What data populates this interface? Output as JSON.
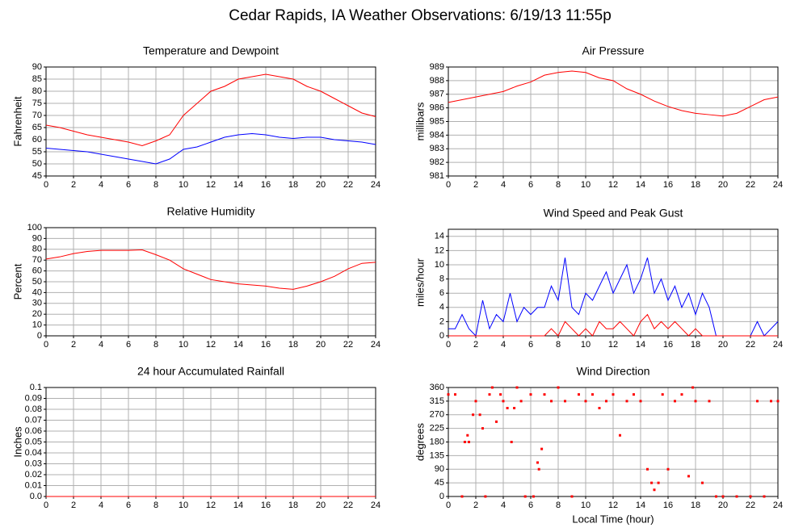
{
  "title": "Cedar Rapids, IA Weather Observations: 6/19/13 11:55p",
  "chart_data": [
    {
      "type": "line",
      "title": "Temperature and Dewpoint",
      "ylabel": "Fahrenheit",
      "x": [
        0,
        1,
        2,
        3,
        4,
        5,
        6,
        7,
        8,
        9,
        10,
        11,
        12,
        13,
        14,
        15,
        16,
        17,
        18,
        19,
        20,
        21,
        22,
        23,
        24
      ],
      "series": [
        {
          "color": "#ff0000",
          "values": [
            66,
            65,
            63.5,
            62,
            61,
            60,
            59,
            57.5,
            59.5,
            62,
            70,
            75,
            80,
            82,
            85,
            86,
            87,
            86,
            85,
            82,
            80,
            77,
            74,
            71,
            69.5
          ]
        },
        {
          "color": "#0000ff",
          "values": [
            56.5,
            56,
            55.5,
            55,
            54,
            53,
            52,
            51,
            50,
            52,
            56,
            57,
            59,
            61,
            62,
            62.5,
            62,
            61,
            60.5,
            61,
            61,
            60,
            59.5,
            59,
            58
          ]
        }
      ],
      "xlim": [
        0,
        24
      ],
      "xticks": [
        0,
        2,
        4,
        6,
        8,
        10,
        12,
        14,
        16,
        18,
        20,
        22,
        24
      ],
      "ylim": [
        45,
        90
      ],
      "yticks": [
        45,
        50,
        55,
        60,
        65,
        70,
        75,
        80,
        85,
        90
      ],
      "grid": true
    },
    {
      "type": "line",
      "title": "Air Pressure",
      "ylabel": "millibars",
      "x": [
        0,
        1,
        2,
        3,
        4,
        5,
        6,
        7,
        8,
        9,
        10,
        11,
        12,
        13,
        14,
        15,
        16,
        17,
        18,
        19,
        20,
        21,
        22,
        23,
        24
      ],
      "series": [
        {
          "color": "#ff0000",
          "values": [
            986.4,
            986.6,
            986.8,
            987,
            987.2,
            987.6,
            987.9,
            988.4,
            988.6,
            988.7,
            988.6,
            988.2,
            988.0,
            987.4,
            987.0,
            986.5,
            986.1,
            985.8,
            985.6,
            985.5,
            985.4,
            985.6,
            986.1,
            986.6,
            986.8
          ]
        }
      ],
      "xlim": [
        0,
        24
      ],
      "xticks": [
        0,
        2,
        4,
        6,
        8,
        10,
        12,
        14,
        16,
        18,
        20,
        22,
        24
      ],
      "ylim": [
        981,
        989
      ],
      "yticks": [
        981,
        982,
        983,
        984,
        985,
        986,
        987,
        988,
        989
      ],
      "grid": true
    },
    {
      "type": "line",
      "title": "Relative Humidity",
      "ylabel": "Percent",
      "x": [
        0,
        1,
        2,
        3,
        4,
        5,
        6,
        7,
        8,
        9,
        10,
        11,
        12,
        13,
        14,
        15,
        16,
        17,
        18,
        19,
        20,
        21,
        22,
        23,
        24
      ],
      "series": [
        {
          "color": "#ff0000",
          "values": [
            71,
            73,
            76,
            78,
            79,
            79,
            79,
            79.5,
            75,
            70,
            62,
            57,
            52,
            50,
            48,
            47,
            46,
            44,
            43,
            46,
            50,
            55,
            62,
            67,
            68
          ]
        }
      ],
      "xlim": [
        0,
        24
      ],
      "xticks": [
        0,
        2,
        4,
        6,
        8,
        10,
        12,
        14,
        16,
        18,
        20,
        22,
        24
      ],
      "ylim": [
        0,
        100
      ],
      "yticks": [
        0,
        10,
        20,
        30,
        40,
        50,
        60,
        70,
        80,
        90,
        100
      ],
      "grid": true
    },
    {
      "type": "line",
      "title": "Wind Speed and Peak Gust",
      "ylabel": "miles/hour",
      "x": [
        0,
        0.5,
        1,
        1.5,
        2,
        2.5,
        3,
        3.5,
        4,
        4.5,
        5,
        5.5,
        6,
        6.5,
        7,
        7.5,
        8,
        8.5,
        9,
        9.5,
        10,
        10.5,
        11,
        11.5,
        12,
        12.5,
        13,
        13.5,
        14,
        14.5,
        15,
        15.5,
        16,
        16.5,
        17,
        17.5,
        18,
        18.5,
        19,
        19.5,
        20,
        20.5,
        21,
        21.5,
        22,
        22.5,
        23,
        23.5,
        24
      ],
      "series": [
        {
          "color": "#0000ff",
          "values": [
            1,
            1,
            3,
            1,
            0,
            5,
            1,
            3,
            2,
            6,
            2,
            4,
            3,
            4,
            4,
            7,
            5,
            11,
            4,
            3,
            6,
            5,
            7,
            9,
            6,
            8,
            10,
            6,
            8,
            11,
            6,
            8,
            5,
            7,
            4,
            6,
            3,
            6,
            4,
            0,
            0,
            0,
            0,
            0,
            0,
            2,
            0,
            1,
            2
          ]
        },
        {
          "color": "#ff0000",
          "values": [
            0,
            0,
            0,
            0,
            0,
            0,
            0,
            0,
            0,
            0,
            0,
            0,
            0,
            0,
            0,
            1,
            0,
            2,
            1,
            0,
            1,
            0,
            2,
            1,
            1,
            2,
            1,
            0,
            2,
            3,
            1,
            2,
            1,
            2,
            1,
            0,
            1,
            0,
            0,
            0,
            0,
            0,
            0,
            0,
            0,
            0,
            0,
            0,
            0
          ]
        }
      ],
      "xlim": [
        0,
        24
      ],
      "xticks": [
        0,
        2,
        4,
        6,
        8,
        10,
        12,
        14,
        16,
        18,
        20,
        22,
        24
      ],
      "ylim": [
        0,
        15
      ],
      "yticks": [
        0,
        2,
        4,
        6,
        8,
        10,
        12,
        14
      ],
      "grid": true
    },
    {
      "type": "line",
      "title": "24 hour Accumulated Rainfall",
      "ylabel": "Inches",
      "x": [
        0,
        1,
        2,
        3,
        4,
        5,
        6,
        7,
        8,
        9,
        10,
        11,
        12,
        13,
        14,
        15,
        16,
        17,
        18,
        19,
        20,
        21,
        22,
        23,
        24
      ],
      "series": [
        {
          "color": "#ff0000",
          "values": [
            0,
            0,
            0,
            0,
            0,
            0,
            0,
            0,
            0,
            0,
            0,
            0,
            0,
            0,
            0,
            0,
            0,
            0,
            0,
            0,
            0,
            0,
            0,
            0,
            0
          ]
        }
      ],
      "xlim": [
        0,
        24
      ],
      "xticks": [
        0,
        2,
        4,
        6,
        8,
        10,
        12,
        14,
        16,
        18,
        20,
        22,
        24
      ],
      "ylim": [
        0,
        0.1
      ],
      "yticks": [
        {
          "value": 0,
          "label": "0.0"
        },
        0.01,
        0.02,
        0.03,
        0.04,
        0.05,
        0.06,
        0.07,
        0.08,
        0.09,
        0.1
      ],
      "grid": true
    },
    {
      "type": "scatter",
      "title": "Wind Direction",
      "ylabel": "degrees",
      "xlabel": "Local Time (hour)",
      "x": [
        0,
        0.5,
        1,
        1.2,
        1.4,
        1.5,
        1.8,
        2,
        2.3,
        2.5,
        2.7,
        3,
        3.2,
        3.5,
        3.8,
        4,
        4.3,
        4.6,
        4.8,
        5,
        5.3,
        5.6,
        6,
        6.2,
        6.5,
        6.6,
        6.8,
        7,
        7.5,
        8,
        8.5,
        9,
        9.5,
        10,
        10.5,
        11,
        11.5,
        12,
        12.5,
        13,
        13.5,
        14,
        14.5,
        14.8,
        15,
        15.3,
        15.6,
        16,
        16.5,
        17,
        17.5,
        17.8,
        18,
        18.5,
        19,
        19.5,
        20,
        21,
        22,
        22.5,
        23,
        23.5,
        24
      ],
      "series": [
        {
          "color": "#ff0000",
          "values": [
            337,
            337,
            0,
            180,
            202,
            180,
            270,
            315,
            270,
            225,
            0,
            337,
            360,
            247,
            337,
            315,
            292,
            180,
            292,
            360,
            315,
            0,
            337,
            0,
            112,
            90,
            157,
            337,
            315,
            360,
            315,
            0,
            337,
            315,
            337,
            292,
            315,
            337,
            202,
            315,
            337,
            315,
            90,
            45,
            22,
            45,
            337,
            90,
            315,
            337,
            67,
            360,
            315,
            45,
            315,
            0,
            0,
            0,
            0,
            315,
            0,
            315,
            315
          ]
        }
      ],
      "xlim": [
        0,
        24
      ],
      "xticks": [
        0,
        2,
        4,
        6,
        8,
        10,
        12,
        14,
        16,
        18,
        20,
        22,
        24
      ],
      "ylim": [
        0,
        360
      ],
      "yticks": [
        0,
        45,
        90,
        135,
        180,
        225,
        270,
        315,
        360
      ],
      "grid": true
    }
  ]
}
